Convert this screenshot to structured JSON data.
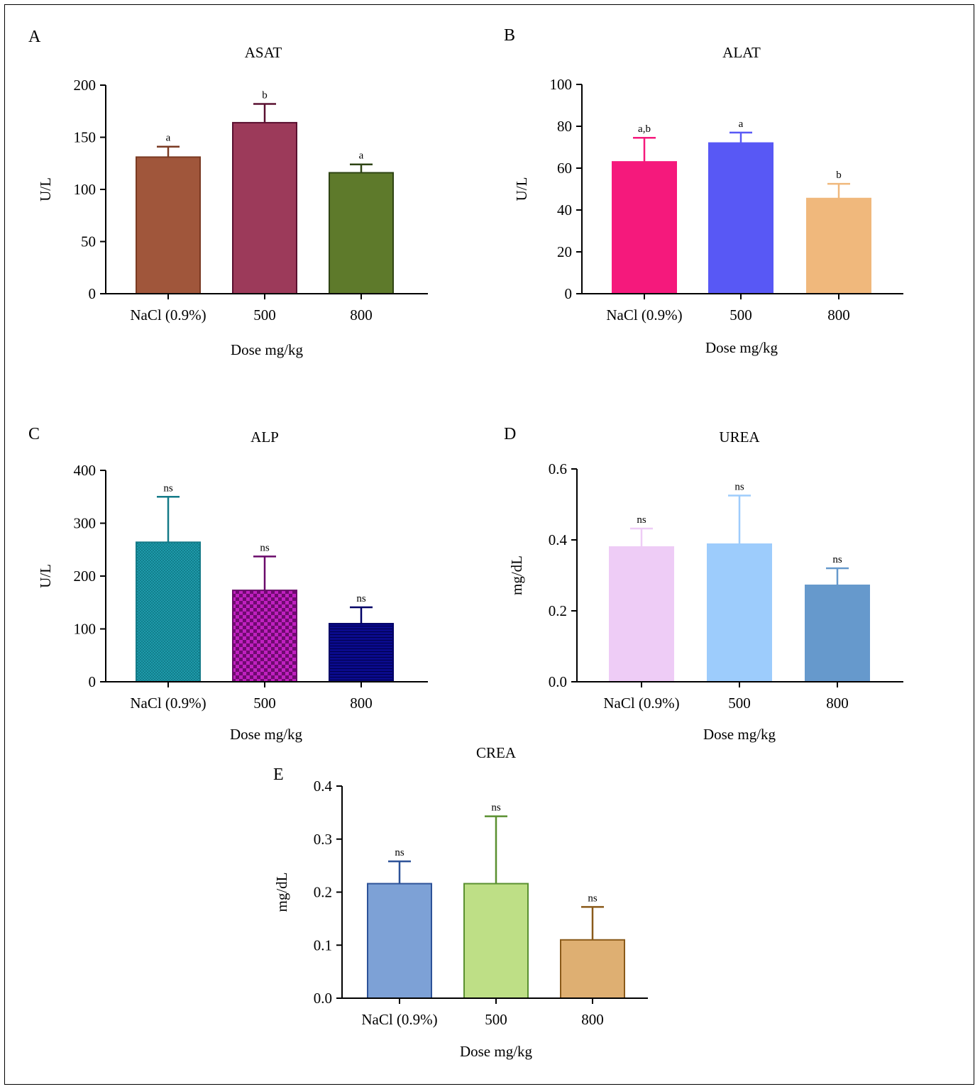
{
  "chart_data": [
    {
      "type": "bar",
      "panel_label": "A",
      "title": "ASAT",
      "xlabel": "Dose mg/kg",
      "ylabel": "U/L",
      "categories": [
        "NaCl (0.9%)",
        "500",
        "800"
      ],
      "values": [
        131,
        164,
        116
      ],
      "error_upper": [
        141,
        182,
        124
      ],
      "annotations": [
        "a",
        "b",
        "a"
      ],
      "ylim": [
        0,
        200
      ],
      "yticks": [
        "0",
        "50",
        "100",
        "150",
        "200"
      ],
      "colors": [
        "#A0563B",
        "#9C3A5A",
        "#5E7A2B"
      ],
      "stroke_colors": [
        "#7A3A22",
        "#5A1030",
        "#2E4414"
      ],
      "patterns": [
        "solid",
        "solid",
        "solid"
      ]
    },
    {
      "type": "bar",
      "panel_label": "B",
      "title": "ALAT",
      "xlabel": "Dose mg/kg",
      "ylabel": "U/L",
      "categories": [
        "NaCl (0.9%)",
        "500",
        "800"
      ],
      "values": [
        63,
        72,
        45.5
      ],
      "error_upper": [
        74.5,
        77,
        52.5
      ],
      "annotations": [
        "a,b",
        "a",
        "b"
      ],
      "ylim": [
        0,
        100
      ],
      "yticks": [
        "0",
        "20",
        "40",
        "60",
        "80",
        "100"
      ],
      "colors": [
        "#F5197C",
        "#5858F5",
        "#F0B87C"
      ],
      "stroke_colors": [
        "#F5197C",
        "#5858F5",
        "#F0B87C"
      ],
      "patterns": [
        "solid",
        "solid",
        "solid"
      ]
    },
    {
      "type": "bar",
      "panel_label": "C",
      "title": "ALP",
      "xlabel": "Dose mg/kg",
      "ylabel": "U/L",
      "categories": [
        "NaCl (0.9%)",
        "500",
        "800"
      ],
      "values": [
        264,
        173,
        110
      ],
      "error_upper": [
        350,
        237,
        141
      ],
      "annotations": [
        "ns",
        "ns",
        "ns"
      ],
      "ylim": [
        0,
        400
      ],
      "yticks": [
        "0",
        "100",
        "200",
        "300",
        "400"
      ],
      "colors": [
        "#1E9AAA",
        "#A010A0",
        "#0A0A8C"
      ],
      "stroke_colors": [
        "#147A88",
        "#6A0A6A",
        "#000066"
      ],
      "patterns": [
        "fine-check",
        "checker",
        "hlines"
      ]
    },
    {
      "type": "bar",
      "panel_label": "D",
      "title": "UREA",
      "xlabel": "Dose mg/kg",
      "ylabel": "mg/dL",
      "categories": [
        "NaCl (0.9%)",
        "500",
        "800"
      ],
      "values": [
        0.38,
        0.388,
        0.272
      ],
      "error_upper": [
        0.432,
        0.525,
        0.32
      ],
      "annotations": [
        "ns",
        "ns",
        "ns"
      ],
      "ylim": [
        0,
        0.6
      ],
      "yticks": [
        "0.0",
        "0.2",
        "0.4",
        "0.6"
      ],
      "colors": [
        "#EECCF6",
        "#9DCCFC",
        "#6699CC"
      ],
      "stroke_colors": [
        "#EECCF6",
        "#9DCCFC",
        "#6699CC"
      ],
      "patterns": [
        "solid",
        "solid",
        "solid"
      ]
    },
    {
      "type": "bar",
      "panel_label": "E",
      "title": "CREA",
      "xlabel": "Dose mg/kg",
      "ylabel": "mg/dL",
      "categories": [
        "NaCl (0.9%)",
        "500",
        "800"
      ],
      "values": [
        0.216,
        0.216,
        0.11
      ],
      "error_upper": [
        0.258,
        0.343,
        0.172
      ],
      "annotations": [
        "ns",
        "ns",
        "ns"
      ],
      "ylim": [
        0,
        0.4
      ],
      "yticks": [
        "0.0",
        "0.1",
        "0.2",
        "0.3",
        "0.4"
      ],
      "colors": [
        "#7DA1D6",
        "#BEDF86",
        "#DEAF72"
      ],
      "stroke_colors": [
        "#2D5298",
        "#5A9030",
        "#8A5A1A"
      ],
      "patterns": [
        "solid",
        "solid",
        "solid"
      ]
    }
  ]
}
